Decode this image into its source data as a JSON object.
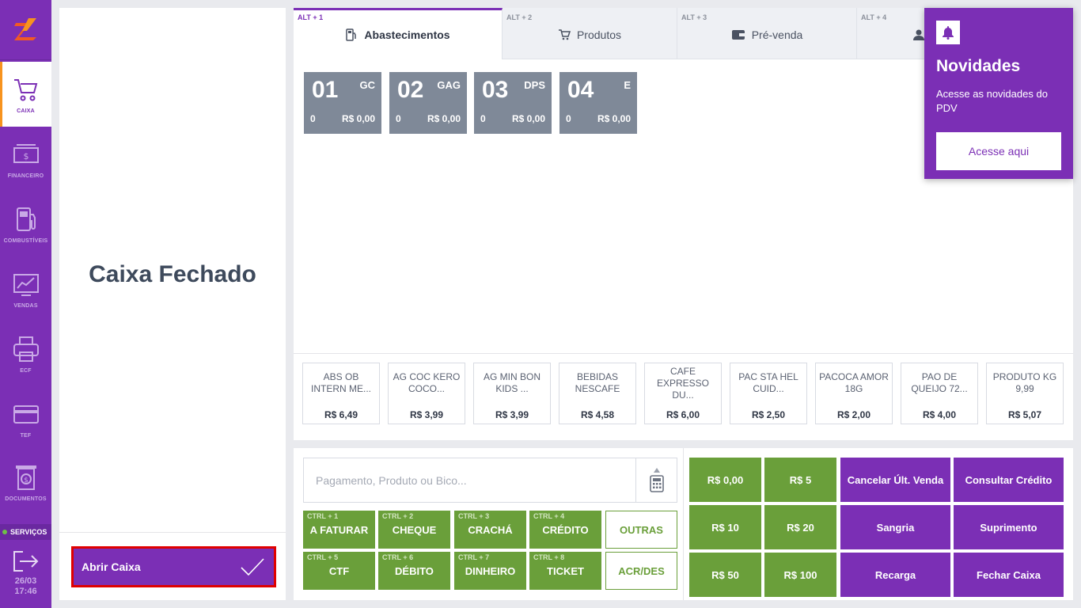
{
  "sidebar": {
    "items": [
      {
        "label": "CAIXA",
        "icon": "cart-icon"
      },
      {
        "label": "FINANCEIRO",
        "icon": "money-icon"
      },
      {
        "label": "COMBUSTÍVEIS",
        "icon": "fuel-pump-icon"
      },
      {
        "label": "VENDAS",
        "icon": "chart-icon"
      },
      {
        "label": "ECF",
        "icon": "printer-icon"
      },
      {
        "label": "TEF",
        "icon": "card-icon"
      },
      {
        "label": "DOCUMENTOS",
        "icon": "document-icon"
      }
    ],
    "servicos": "SERVIÇOS",
    "date": "26/03",
    "time": "17:46"
  },
  "left": {
    "status": "Caixa Fechado",
    "open_button": "Abrir Caixa"
  },
  "tabs": [
    {
      "shortcut": "ALT + 1",
      "label": "Abastecimentos",
      "icon": "fuel-pump-icon"
    },
    {
      "shortcut": "ALT + 2",
      "label": "Produtos",
      "icon": "cart-icon"
    },
    {
      "shortcut": "ALT + 3",
      "label": "Pré-venda",
      "icon": "wallet-icon"
    },
    {
      "shortcut": "ALT + 4",
      "label": "",
      "icon": "user-icon"
    }
  ],
  "pumps": [
    {
      "number": "01",
      "code": "GC",
      "qty": "0",
      "value": "R$ 0,00"
    },
    {
      "number": "02",
      "code": "GAG",
      "qty": "0",
      "value": "R$ 0,00"
    },
    {
      "number": "03",
      "code": "DPS",
      "qty": "0",
      "value": "R$ 0,00"
    },
    {
      "number": "04",
      "code": "E",
      "qty": "0",
      "value": "R$ 0,00"
    }
  ],
  "products": [
    {
      "name": "ABS OB INTERN ME...",
      "price": "R$ 6,49"
    },
    {
      "name": "AG COC KERO COCO...",
      "price": "R$ 3,99"
    },
    {
      "name": "AG MIN BON KIDS ...",
      "price": "R$ 3,99"
    },
    {
      "name": "BEBIDAS NESCAFE",
      "price": "R$ 4,58"
    },
    {
      "name": "CAFE EXPRESSO DU...",
      "price": "R$ 6,00"
    },
    {
      "name": "PAC STA HEL CUID...",
      "price": "R$ 2,50"
    },
    {
      "name": "PACOCA AMOR 18G",
      "price": "R$ 2,00"
    },
    {
      "name": "PAO DE QUEIJO 72...",
      "price": "R$ 4,00"
    },
    {
      "name": "PRODUTO KG 9,99",
      "price": "R$ 5,07"
    }
  ],
  "search": {
    "placeholder": "Pagamento, Produto ou Bico..."
  },
  "payments": [
    {
      "shortcut": "CTRL + 1",
      "label": "A FATURAR"
    },
    {
      "shortcut": "CTRL + 2",
      "label": "CHEQUE"
    },
    {
      "shortcut": "CTRL + 3",
      "label": "CRACHÁ"
    },
    {
      "shortcut": "CTRL + 4",
      "label": "CRÉDITO"
    },
    {
      "shortcut": "",
      "label": "OUTRAS"
    },
    {
      "shortcut": "CTRL + 5",
      "label": "CTF"
    },
    {
      "shortcut": "CTRL + 6",
      "label": "DÉBITO"
    },
    {
      "shortcut": "CTRL + 7",
      "label": "DINHEIRO"
    },
    {
      "shortcut": "CTRL + 8",
      "label": "TICKET"
    },
    {
      "shortcut": "",
      "label": "ACR/DES"
    }
  ],
  "quick": [
    "R$ 0,00",
    "R$ 5",
    "Cancelar Últ. Venda",
    "Consultar Crédito",
    "R$ 10",
    "R$ 20",
    "Sangria",
    "Suprimento",
    "R$ 50",
    "R$ 100",
    "Recarga",
    "Fechar Caixa"
  ],
  "notification": {
    "title": "Novidades",
    "description": "Acesse as novidades do PDV",
    "button": "Acesse aqui"
  },
  "colors": {
    "brand": "#7b2fb5",
    "pump": "#7f8998",
    "payment": "#6a9f3a",
    "logo": "#f15a24"
  }
}
